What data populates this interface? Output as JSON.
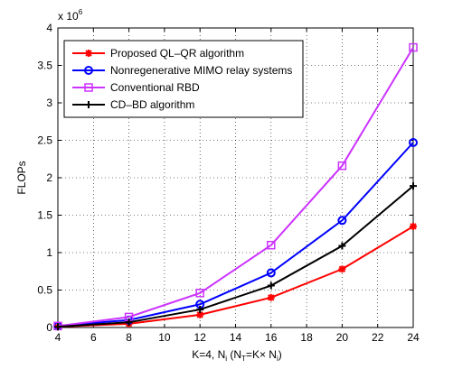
{
  "chart_data": {
    "type": "line",
    "xlabel": "K=4, N_i (N_T=K× N_i)",
    "ylabel": "FLOPs",
    "y_multiplier": "x 10^6",
    "x": [
      4,
      8,
      12,
      16,
      20,
      24
    ],
    "xlim": [
      4,
      24
    ],
    "ylim": [
      0,
      4
    ],
    "xticks": [
      "4",
      "6",
      "8",
      "10",
      "12",
      "14",
      "16",
      "18",
      "20",
      "22",
      "24"
    ],
    "yticks": [
      "0",
      "0.5",
      "1",
      "1.5",
      "2",
      "2.5",
      "3",
      "3.5",
      "4"
    ],
    "grid": true,
    "legend_position": "top-left",
    "series": [
      {
        "name": "Proposed QL–QR algorithm",
        "color": "#ff0000",
        "marker": "asterisk",
        "values": [
          0.01,
          0.05,
          0.17,
          0.4,
          0.78,
          1.35
        ]
      },
      {
        "name": "Nonregenerative MIMO relay systems",
        "color": "#0000ff",
        "marker": "circle",
        "values": [
          0.02,
          0.1,
          0.31,
          0.73,
          1.43,
          2.47
        ]
      },
      {
        "name": "Conventional RBD",
        "color": "#cc33ff",
        "marker": "square",
        "values": [
          0.02,
          0.14,
          0.46,
          1.1,
          2.16,
          3.74
        ]
      },
      {
        "name": "CD–BD algorithm",
        "color": "#000000",
        "marker": "plus",
        "values": [
          0.01,
          0.07,
          0.24,
          0.56,
          1.09,
          1.89
        ]
      }
    ]
  }
}
